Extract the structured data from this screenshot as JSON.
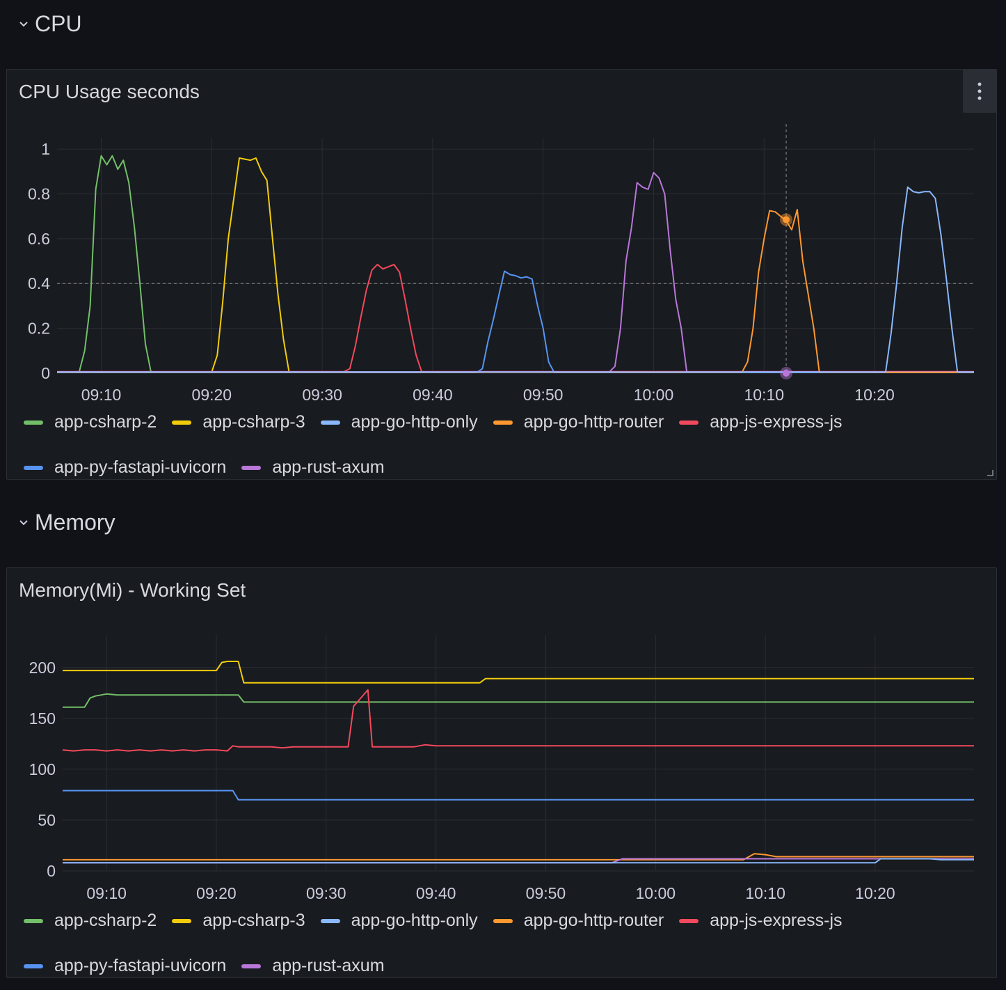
{
  "colors": {
    "app-csharp-2": "#73bf69",
    "app-csharp-3": "#f2cc0c",
    "app-go-http-only": "#8ab8ff",
    "app-go-http-router": "#ff9830",
    "app-js-express-js": "#f2495c",
    "app-py-fastapi-uvicorn": "#5794f2",
    "app-rust-axum": "#b877d9"
  },
  "rows": {
    "cpu": {
      "title": "CPU",
      "icon": "chevron-down-icon"
    },
    "memory": {
      "title": "Memory",
      "icon": "chevron-down-icon"
    }
  },
  "panels": {
    "cpu": {
      "title": "CPU Usage seconds",
      "menu_icon": "vertical-dots-icon",
      "legend": [
        "app-csharp-2",
        "app-csharp-3",
        "app-go-http-only",
        "app-go-http-router",
        "app-js-express-js",
        "app-py-fastapi-uvicorn",
        "app-rust-axum"
      ]
    },
    "memory": {
      "title": "Memory(Mi) - Working Set",
      "legend": [
        "app-csharp-2",
        "app-csharp-3",
        "app-go-http-only",
        "app-go-http-router",
        "app-js-express-js",
        "app-py-fastapi-uvicorn",
        "app-rust-axum"
      ]
    }
  },
  "chart_data": [
    {
      "id": "cpu",
      "type": "line",
      "title": "CPU Usage seconds",
      "x_range": [
        "09:06",
        "10:29"
      ],
      "x_ticks": [
        "09:10",
        "09:20",
        "09:30",
        "09:40",
        "09:50",
        "10:00",
        "10:10",
        "10:20"
      ],
      "y_ticks": [
        "0",
        "0.2",
        "0.4",
        "0.6",
        "0.8",
        "1"
      ],
      "ylim": [
        0,
        1.05
      ],
      "grid": true,
      "legend_position": "bottom",
      "crosshair": {
        "x": "10:12",
        "y": 0.4
      },
      "series": [
        {
          "name": "app-csharp-2",
          "points": [
            [
              "09:06",
              0.005
            ],
            [
              "09:08",
              0.005
            ],
            [
              "09:08.5",
              0.1
            ],
            [
              "09:09",
              0.3
            ],
            [
              "09:09.5",
              0.82
            ],
            [
              "09:10",
              0.97
            ],
            [
              "09:10.5",
              0.93
            ],
            [
              "09:11",
              0.97
            ],
            [
              "09:11.5",
              0.91
            ],
            [
              "09:12",
              0.95
            ],
            [
              "09:12.5",
              0.85
            ],
            [
              "09:13",
              0.65
            ],
            [
              "09:13.5",
              0.4
            ],
            [
              "09:14",
              0.13
            ],
            [
              "09:14.5",
              0.005
            ],
            [
              "10:29",
              0.005
            ]
          ]
        },
        {
          "name": "app-csharp-3",
          "points": [
            [
              "09:06",
              0.005
            ],
            [
              "09:20",
              0.005
            ],
            [
              "09:20.5",
              0.08
            ],
            [
              "09:21",
              0.32
            ],
            [
              "09:21.5",
              0.6
            ],
            [
              "09:22",
              0.78
            ],
            [
              "09:22.5",
              0.96
            ],
            [
              "09:23",
              0.955
            ],
            [
              "09:23.5",
              0.95
            ],
            [
              "09:24",
              0.96
            ],
            [
              "09:24.5",
              0.9
            ],
            [
              "09:25",
              0.86
            ],
            [
              "09:25.5",
              0.6
            ],
            [
              "09:26",
              0.35
            ],
            [
              "09:26.5",
              0.15
            ],
            [
              "09:27",
              0.005
            ],
            [
              "10:29",
              0.005
            ]
          ]
        },
        {
          "name": "app-js-express-js",
          "points": [
            [
              "09:06",
              0.007
            ],
            [
              "09:32",
              0.007
            ],
            [
              "09:32.5",
              0.02
            ],
            [
              "09:33",
              0.12
            ],
            [
              "09:33.5",
              0.25
            ],
            [
              "09:34",
              0.37
            ],
            [
              "09:34.5",
              0.46
            ],
            [
              "09:35",
              0.485
            ],
            [
              "09:35.5",
              0.465
            ],
            [
              "09:36",
              0.475
            ],
            [
              "09:36.5",
              0.485
            ],
            [
              "09:37",
              0.45
            ],
            [
              "09:37.5",
              0.33
            ],
            [
              "09:38",
              0.2
            ],
            [
              "09:38.5",
              0.08
            ],
            [
              "09:39",
              0.007
            ],
            [
              "10:29",
              0.007
            ]
          ]
        },
        {
          "name": "app-py-fastapi-uvicorn",
          "points": [
            [
              "09:06",
              0.003
            ],
            [
              "09:44",
              0.003
            ],
            [
              "09:44.5",
              0.02
            ],
            [
              "09:45",
              0.14
            ],
            [
              "09:45.5",
              0.24
            ],
            [
              "09:46",
              0.35
            ],
            [
              "09:46.5",
              0.455
            ],
            [
              "09:47",
              0.44
            ],
            [
              "09:47.5",
              0.435
            ],
            [
              "09:48",
              0.425
            ],
            [
              "09:48.5",
              0.43
            ],
            [
              "09:49",
              0.42
            ],
            [
              "09:49.5",
              0.3
            ],
            [
              "09:50",
              0.2
            ],
            [
              "09:50.5",
              0.05
            ],
            [
              "09:51",
              0.003
            ],
            [
              "10:29",
              0.003
            ]
          ]
        },
        {
          "name": "app-rust-axum",
          "points": [
            [
              "09:06",
              0.006
            ],
            [
              "09:56",
              0.006
            ],
            [
              "09:56.5",
              0.03
            ],
            [
              "09:57",
              0.2
            ],
            [
              "09:57.5",
              0.5
            ],
            [
              "09:58",
              0.65
            ],
            [
              "09:58.5",
              0.85
            ],
            [
              "09:59",
              0.83
            ],
            [
              "09:59.5",
              0.82
            ],
            [
              "10:00",
              0.895
            ],
            [
              "10:00.5",
              0.87
            ],
            [
              "10:01",
              0.8
            ],
            [
              "10:01.5",
              0.55
            ],
            [
              "10:02",
              0.33
            ],
            [
              "10:02.5",
              0.2
            ],
            [
              "10:03",
              0.006
            ],
            [
              "10:29",
              0.006
            ]
          ]
        },
        {
          "name": "app-go-http-router",
          "points": [
            [
              "09:06",
              0.004
            ],
            [
              "10:08",
              0.004
            ],
            [
              "10:08.5",
              0.05
            ],
            [
              "10:09",
              0.2
            ],
            [
              "10:09.5",
              0.45
            ],
            [
              "10:10",
              0.6
            ],
            [
              "10:10.5",
              0.725
            ],
            [
              "10:11",
              0.72
            ],
            [
              "10:11.5",
              0.7
            ],
            [
              "10:12",
              0.68
            ],
            [
              "10:12.5",
              0.64
            ],
            [
              "10:13",
              0.73
            ],
            [
              "10:13.5",
              0.5
            ],
            [
              "10:14",
              0.35
            ],
            [
              "10:14.5",
              0.2
            ],
            [
              "10:15",
              0.004
            ],
            [
              "10:29",
              0.004
            ]
          ]
        },
        {
          "name": "app-go-http-only",
          "points": [
            [
              "09:06",
              0.005
            ],
            [
              "10:21",
              0.005
            ],
            [
              "10:21.5",
              0.18
            ],
            [
              "10:22",
              0.4
            ],
            [
              "10:22.5",
              0.65
            ],
            [
              "10:23",
              0.83
            ],
            [
              "10:23.5",
              0.81
            ],
            [
              "10:24",
              0.805
            ],
            [
              "10:24.5",
              0.81
            ],
            [
              "10:25",
              0.81
            ],
            [
              "10:25.5",
              0.78
            ],
            [
              "10:26",
              0.62
            ],
            [
              "10:26.5",
              0.42
            ],
            [
              "10:27",
              0.2
            ],
            [
              "10:27.5",
              0.005
            ],
            [
              "10:29",
              0.005
            ]
          ]
        }
      ],
      "hover_points": [
        {
          "series": "app-go-http-router",
          "x": "10:12",
          "y": 0.685
        },
        {
          "series": "app-rust-axum",
          "x": "10:12",
          "y": 0.0
        }
      ]
    },
    {
      "id": "memory",
      "type": "line",
      "title": "Memory(Mi) - Working Set",
      "x_range": [
        "09:06",
        "10:29"
      ],
      "x_ticks": [
        "09:10",
        "09:20",
        "09:30",
        "09:40",
        "09:50",
        "10:00",
        "10:10",
        "10:20"
      ],
      "y_ticks": [
        "0",
        "50",
        "100",
        "150",
        "200"
      ],
      "ylim": [
        0,
        232
      ],
      "grid": true,
      "legend_position": "bottom",
      "series": [
        {
          "name": "app-csharp-3",
          "points": [
            [
              "09:06",
              197
            ],
            [
              "09:20",
              197
            ],
            [
              "09:20.5",
              205
            ],
            [
              "09:21",
              206
            ],
            [
              "09:22",
              206
            ],
            [
              "09:22.5",
              185
            ],
            [
              "09:44",
              185
            ],
            [
              "09:44.5",
              189
            ],
            [
              "10:29",
              189
            ]
          ]
        },
        {
          "name": "app-csharp-2",
          "points": [
            [
              "09:06",
              161
            ],
            [
              "09:08",
              161
            ],
            [
              "09:08.5",
              170
            ],
            [
              "09:09",
              172
            ],
            [
              "09:10",
              174
            ],
            [
              "09:11",
              173
            ],
            [
              "09:12",
              173
            ],
            [
              "09:22",
              173
            ],
            [
              "09:22.5",
              166
            ],
            [
              "10:29",
              166
            ]
          ]
        },
        {
          "name": "app-js-express-js",
          "points": [
            [
              "09:06",
              119
            ],
            [
              "09:07",
              118
            ],
            [
              "09:08",
              119
            ],
            [
              "09:09",
              119
            ],
            [
              "09:10",
              118
            ],
            [
              "09:11",
              119
            ],
            [
              "09:12",
              118
            ],
            [
              "09:13",
              119
            ],
            [
              "09:14",
              118
            ],
            [
              "09:15",
              119
            ],
            [
              "09:16",
              118
            ],
            [
              "09:17",
              119
            ],
            [
              "09:18",
              118
            ],
            [
              "09:19",
              119
            ],
            [
              "09:20",
              119
            ],
            [
              "09:21",
              118
            ],
            [
              "09:21.5",
              123
            ],
            [
              "09:22",
              122
            ],
            [
              "09:25",
              122
            ],
            [
              "09:26",
              121
            ],
            [
              "09:27",
              122
            ],
            [
              "09:32",
              122
            ],
            [
              "09:32.5",
              162
            ],
            [
              "09:33",
              168
            ],
            [
              "09:33.8",
              178
            ],
            [
              "09:34.2",
              122
            ],
            [
              "09:38",
              122
            ],
            [
              "09:39",
              124
            ],
            [
              "09:40",
              123
            ],
            [
              "10:29",
              123
            ]
          ]
        },
        {
          "name": "app-py-fastapi-uvicorn",
          "points": [
            [
              "09:06",
              79
            ],
            [
              "09:21.5",
              79
            ],
            [
              "09:22",
              70
            ],
            [
              "10:29",
              70
            ]
          ]
        },
        {
          "name": "app-go-http-router",
          "points": [
            [
              "09:06",
              11
            ],
            [
              "10:08",
              11
            ],
            [
              "10:09",
              17
            ],
            [
              "10:10",
              16
            ],
            [
              "10:11",
              14
            ],
            [
              "10:29",
              14
            ]
          ]
        },
        {
          "name": "app-rust-axum",
          "points": [
            [
              "09:06",
              8
            ],
            [
              "09:56",
              8
            ],
            [
              "09:57",
              12
            ],
            [
              "10:29",
              12
            ]
          ]
        },
        {
          "name": "app-go-http-only",
          "points": [
            [
              "09:06",
              8
            ],
            [
              "10:20",
              8
            ],
            [
              "10:20.5",
              12
            ],
            [
              "10:25",
              12
            ],
            [
              "10:26",
              11
            ],
            [
              "10:29",
              11
            ]
          ]
        }
      ]
    }
  ]
}
